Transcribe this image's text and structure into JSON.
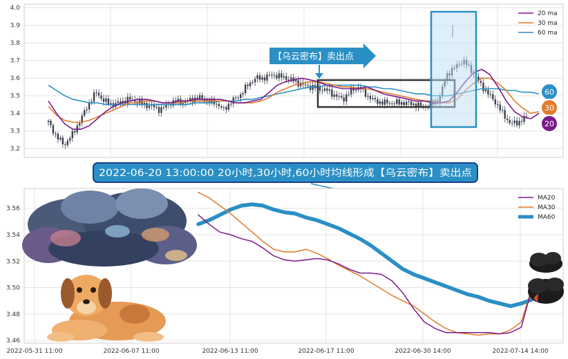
{
  "chart_data": [
    {
      "type": "line",
      "panel": "top",
      "ylim": [
        3.15,
        4.02
      ],
      "yticks": [
        "3.2",
        "3.3",
        "3.4",
        "3.5",
        "3.6",
        "3.7",
        "3.8",
        "3.9",
        "4.0"
      ],
      "grid": true,
      "legend_position": "top-right",
      "legend": [
        "20 ma",
        "30 ma",
        "60 ma"
      ],
      "colors": {
        "ma20": "#7b1a8a",
        "ma30": "#e07b2c",
        "ma60": "#2a8fc4",
        "candles": "#3b3f4d"
      },
      "series": [
        {
          "name": "20 ma",
          "values": [
            3.47,
            3.4,
            3.34,
            3.31,
            3.31,
            3.33,
            3.37,
            3.41,
            3.44,
            3.46,
            3.47,
            3.48,
            3.48,
            3.47,
            3.46,
            3.46,
            3.47,
            3.47,
            3.48,
            3.48,
            3.48,
            3.48,
            3.47,
            3.46,
            3.46,
            3.47,
            3.48,
            3.52,
            3.56,
            3.58,
            3.59,
            3.6,
            3.59,
            3.58,
            3.56,
            3.55,
            3.54,
            3.54,
            3.54,
            3.55,
            3.53,
            3.51,
            3.5,
            3.49,
            3.48,
            3.47,
            3.47,
            3.46,
            3.46,
            3.47,
            3.52,
            3.58,
            3.63,
            3.65,
            3.62,
            3.55,
            3.47,
            3.41,
            3.38,
            3.37,
            3.4
          ]
        },
        {
          "name": "30 ma",
          "values": [
            3.44,
            3.39,
            3.36,
            3.35,
            3.35,
            3.36,
            3.38,
            3.4,
            3.42,
            3.44,
            3.46,
            3.46,
            3.47,
            3.47,
            3.46,
            3.46,
            3.46,
            3.47,
            3.47,
            3.47,
            3.47,
            3.47,
            3.47,
            3.46,
            3.46,
            3.46,
            3.47,
            3.49,
            3.52,
            3.54,
            3.56,
            3.57,
            3.58,
            3.58,
            3.57,
            3.56,
            3.55,
            3.55,
            3.54,
            3.54,
            3.53,
            3.52,
            3.51,
            3.5,
            3.49,
            3.48,
            3.47,
            3.47,
            3.46,
            3.46,
            3.48,
            3.53,
            3.57,
            3.6,
            3.6,
            3.57,
            3.53,
            3.47,
            3.43,
            3.4,
            3.41
          ]
        },
        {
          "name": "60 ma",
          "values": [
            3.56,
            3.53,
            3.5,
            3.48,
            3.47,
            3.46,
            3.46,
            3.45,
            3.45,
            3.45,
            3.45,
            3.45,
            3.45,
            3.45,
            3.45,
            3.45,
            3.45,
            3.45,
            3.46,
            3.46,
            3.46,
            3.47,
            3.47,
            3.47,
            3.48,
            3.48,
            3.49,
            3.5,
            3.51,
            3.52,
            3.53,
            3.54,
            3.55,
            3.55,
            3.56,
            3.56,
            3.56,
            3.56,
            3.56,
            3.55,
            3.55,
            3.54,
            3.54,
            3.53,
            3.52,
            3.51,
            3.51,
            3.5,
            3.5,
            3.5,
            3.51,
            3.52,
            3.53,
            3.54,
            3.54,
            3.54,
            3.53,
            3.53,
            3.52,
            3.52,
            3.51
          ]
        },
        {
          "name": "price",
          "values": [
            3.35,
            3.27,
            3.22,
            3.28,
            3.36,
            3.45,
            3.52,
            3.47,
            3.45,
            3.46,
            3.48,
            3.47,
            3.45,
            3.44,
            3.42,
            3.45,
            3.47,
            3.46,
            3.48,
            3.49,
            3.47,
            3.46,
            3.42,
            3.47,
            3.5,
            3.56,
            3.6,
            3.6,
            3.62,
            3.61,
            3.6,
            3.58,
            3.56,
            3.55,
            3.54,
            3.53,
            3.5,
            3.48,
            3.53,
            3.55,
            3.5,
            3.47,
            3.46,
            3.46,
            3.46,
            3.46,
            3.45,
            3.44,
            3.45,
            3.48,
            3.62,
            3.66,
            3.7,
            3.65,
            3.58,
            3.52,
            3.47,
            3.4,
            3.34,
            3.35,
            3.38
          ]
        }
      ],
      "annotations": {
        "arrow_label": "【乌云密布】卖出点",
        "badges": [
          "60",
          "30",
          "20"
        ]
      }
    },
    {
      "type": "line",
      "panel": "bottom",
      "ylim": [
        3.458,
        3.575
      ],
      "yticks": [
        "3.46",
        "3.48",
        "3.50",
        "3.52",
        "3.54",
        "3.56"
      ],
      "xticks": [
        "2022-05-31 11:00",
        "2022-06-07 11:00",
        "2022-06-13 11:00",
        "2022-06-17 11:00",
        "2022-06-30 14:00",
        "2022-07-14 14:00"
      ],
      "grid": true,
      "legend_position": "top-right",
      "legend": [
        "MA20",
        "MA30",
        "MA60"
      ],
      "colors": {
        "ma20": "#7b1a8a",
        "ma30": "#e07b2c",
        "ma60": "#2a8fc4"
      },
      "series": [
        {
          "name": "MA20",
          "values": [
            3.555,
            3.548,
            3.542,
            3.54,
            3.537,
            3.535,
            3.53,
            3.524,
            3.521,
            3.52,
            3.521,
            3.522,
            3.521,
            3.518,
            3.514,
            3.511,
            3.511,
            3.51,
            3.505,
            3.496,
            3.484,
            3.474,
            3.469,
            3.466,
            3.466,
            3.466,
            3.466,
            3.466,
            3.465,
            3.466,
            3.47,
            3.5
          ]
        },
        {
          "name": "MA30",
          "values": [
            3.572,
            3.568,
            3.562,
            3.556,
            3.549,
            3.542,
            3.535,
            3.529,
            3.527,
            3.527,
            3.529,
            3.526,
            3.522,
            3.517,
            3.513,
            3.509,
            3.504,
            3.499,
            3.494,
            3.49,
            3.486,
            3.48,
            3.474,
            3.469,
            3.466,
            3.465,
            3.464,
            3.465,
            3.465,
            3.468,
            3.474,
            3.5
          ]
        },
        {
          "name": "MA60",
          "values": [
            3.548,
            3.551,
            3.555,
            3.559,
            3.562,
            3.563,
            3.562,
            3.559,
            3.557,
            3.556,
            3.553,
            3.551,
            3.548,
            3.545,
            3.541,
            3.537,
            3.532,
            3.526,
            3.52,
            3.514,
            3.51,
            3.507,
            3.504,
            3.501,
            3.498,
            3.495,
            3.493,
            3.49,
            3.488,
            3.486,
            3.488,
            3.491
          ]
        }
      ]
    }
  ],
  "banner": {
    "text": "2022-06-20 13:00:00 20小时,30小时,60小时均线形成【乌云密布】卖出点"
  }
}
